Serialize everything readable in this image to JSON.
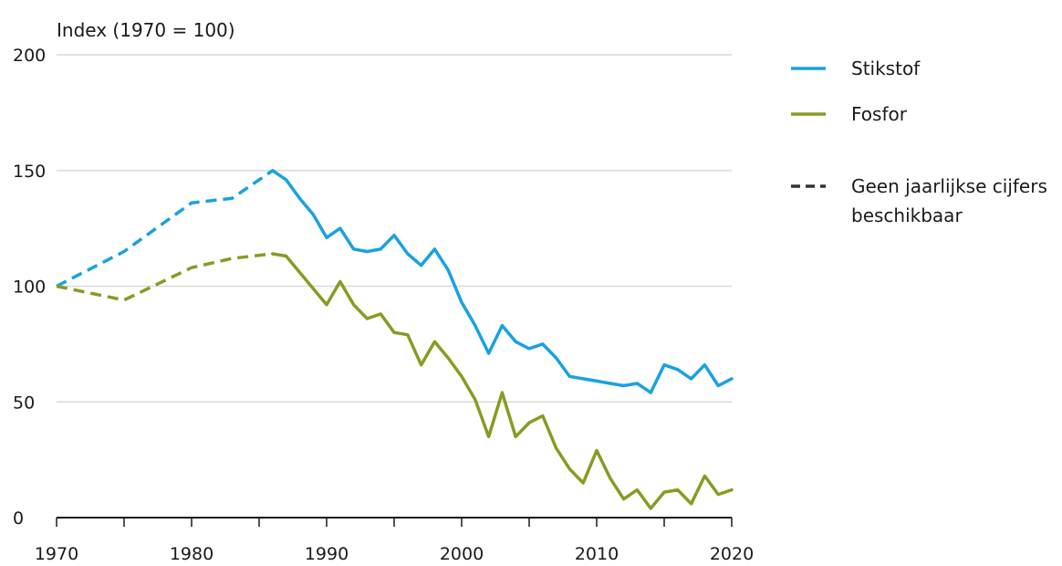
{
  "chart_data": {
    "type": "line",
    "ylabel": "Index (1970 = 100)",
    "xlim": [
      1970,
      2020
    ],
    "ylim": [
      0,
      200
    ],
    "x_ticks": [
      1970,
      1980,
      1990,
      2000,
      2010,
      2020
    ],
    "y_ticks": [
      0,
      50,
      100,
      150,
      200
    ],
    "grid": true,
    "legend_placement": "right",
    "series": [
      {
        "name": "Stikstof",
        "color": "#1aa1df",
        "estimated": [
          [
            1970,
            100
          ],
          [
            1975,
            115
          ],
          [
            1980,
            136
          ],
          [
            1983,
            138
          ],
          [
            1986,
            150
          ]
        ],
        "values": [
          [
            1986,
            150
          ],
          [
            1987,
            146
          ],
          [
            1988,
            138
          ],
          [
            1989,
            131
          ],
          [
            1990,
            121
          ],
          [
            1991,
            125
          ],
          [
            1992,
            116
          ],
          [
            1993,
            115
          ],
          [
            1994,
            116
          ],
          [
            1995,
            122
          ],
          [
            1996,
            114
          ],
          [
            1997,
            109
          ],
          [
            1998,
            116
          ],
          [
            1999,
            107
          ],
          [
            2000,
            93
          ],
          [
            2001,
            83
          ],
          [
            2002,
            71
          ],
          [
            2003,
            83
          ],
          [
            2004,
            76
          ],
          [
            2005,
            73
          ],
          [
            2006,
            75
          ],
          [
            2007,
            69
          ],
          [
            2008,
            61
          ],
          [
            2009,
            60
          ],
          [
            2010,
            59
          ],
          [
            2011,
            58
          ],
          [
            2012,
            57
          ],
          [
            2013,
            58
          ],
          [
            2014,
            54
          ],
          [
            2015,
            66
          ],
          [
            2016,
            64
          ],
          [
            2017,
            60
          ],
          [
            2018,
            66
          ],
          [
            2019,
            57
          ],
          [
            2020,
            60
          ]
        ]
      },
      {
        "name": "Fosfor",
        "color": "#8a9a23",
        "estimated": [
          [
            1970,
            100
          ],
          [
            1975,
            94
          ],
          [
            1980,
            108
          ],
          [
            1983,
            112
          ],
          [
            1986,
            114
          ]
        ],
        "values": [
          [
            1986,
            114
          ],
          [
            1987,
            113
          ],
          [
            1988,
            106
          ],
          [
            1989,
            99
          ],
          [
            1990,
            92
          ],
          [
            1991,
            102
          ],
          [
            1992,
            92
          ],
          [
            1993,
            86
          ],
          [
            1994,
            88
          ],
          [
            1995,
            80
          ],
          [
            1996,
            79
          ],
          [
            1997,
            66
          ],
          [
            1998,
            76
          ],
          [
            1999,
            69
          ],
          [
            2000,
            61
          ],
          [
            2001,
            51
          ],
          [
            2002,
            35
          ],
          [
            2003,
            54
          ],
          [
            2004,
            35
          ],
          [
            2005,
            41
          ],
          [
            2006,
            44
          ],
          [
            2007,
            30
          ],
          [
            2008,
            21
          ],
          [
            2009,
            15
          ],
          [
            2010,
            29
          ],
          [
            2011,
            17
          ],
          [
            2012,
            8
          ],
          [
            2013,
            12
          ],
          [
            2014,
            4
          ],
          [
            2015,
            11
          ],
          [
            2016,
            12
          ],
          [
            2017,
            6
          ],
          [
            2018,
            18
          ],
          [
            2019,
            10
          ],
          [
            2020,
            12
          ]
        ]
      }
    ],
    "legend_items": [
      {
        "label": "Stikstof",
        "style": "solid",
        "color": "#1aa1df"
      },
      {
        "label": "Fosfor",
        "style": "solid",
        "color": "#8a9a23"
      },
      {
        "label_lines": [
          "Geen jaarlijkse cijfers",
          "beschikbaar"
        ],
        "style": "dashed",
        "color": "#333333"
      }
    ],
    "axis_color": "#1a1a1a",
    "grid_color": "#d9d9d9"
  }
}
